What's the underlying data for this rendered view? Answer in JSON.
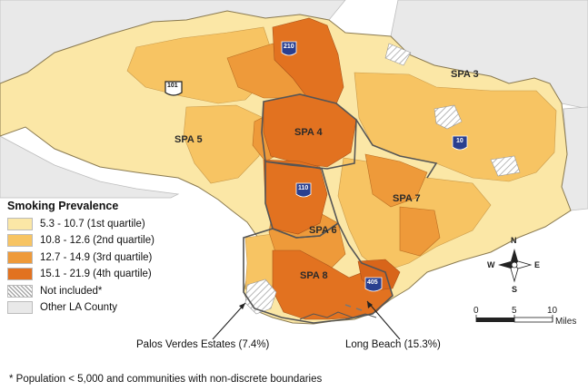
{
  "legend": {
    "title": "Smoking Prevalence",
    "items": [
      {
        "label": "5.3 - 10.7 (1st quartile)",
        "color": "#fbe7a6"
      },
      {
        "label": "10.8 - 12.6 (2nd quartile)",
        "color": "#f7c463"
      },
      {
        "label": "12.7 - 14.9 (3rd quartile)",
        "color": "#ee9a3a"
      },
      {
        "label": "15.1 - 21.9 (4th quartile)",
        "color": "#e27220"
      },
      {
        "label": "Not included*",
        "color": "hatched"
      },
      {
        "label": "Other LA County",
        "color": "#e9e9e9"
      }
    ]
  },
  "regions": {
    "spa3": "SPA 3",
    "spa4": "SPA 4",
    "spa5": "SPA 5",
    "spa6": "SPA 6",
    "spa7": "SPA 7",
    "spa8": "SPA 8"
  },
  "highways": {
    "h210": "210",
    "h101": "101",
    "h10": "10",
    "h110": "110",
    "h405": "405"
  },
  "callouts": {
    "palos_verdes": "Palos Verdes Estates (7.4%)",
    "long_beach": "Long Beach (15.3%)"
  },
  "compass": {
    "n": "N",
    "s": "S",
    "e": "E",
    "w": "W"
  },
  "scale": {
    "ticks": [
      "0",
      "5",
      "10"
    ],
    "unit": "Miles"
  },
  "footnote": "* Population < 5,000 and communities with non-discrete boundaries",
  "colors": {
    "q1": "#fbe7a6",
    "q2": "#f7c463",
    "q3": "#ee9a3a",
    "q4": "#e27220",
    "other": "#e9e9e9",
    "border": "#555555"
  }
}
